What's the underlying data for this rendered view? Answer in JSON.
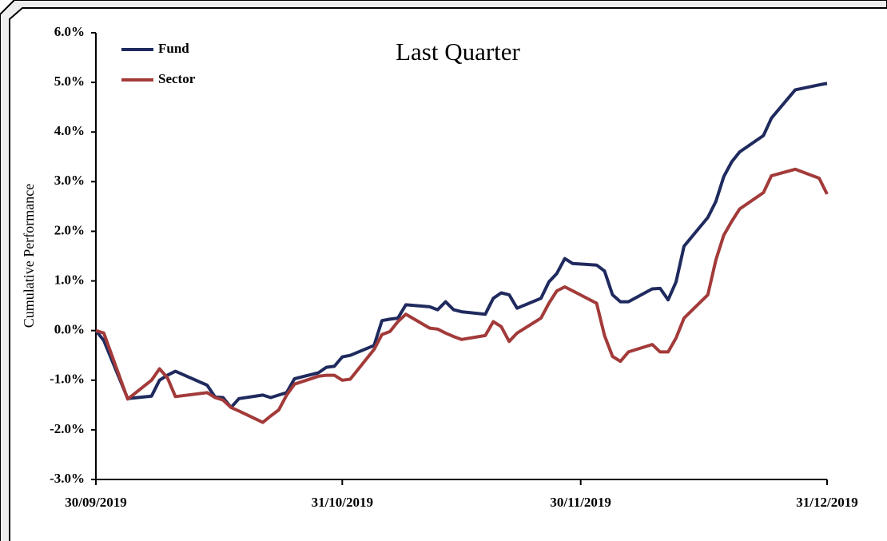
{
  "chart_data": {
    "type": "line",
    "title": "Last Quarter",
    "y_label": "Cumulative Performance",
    "x": [
      "2019-09-30",
      "2019-10-01",
      "2019-10-04",
      "2019-10-07",
      "2019-10-08",
      "2019-10-09",
      "2019-10-10",
      "2019-10-14",
      "2019-10-15",
      "2019-10-16",
      "2019-10-17",
      "2019-10-18",
      "2019-10-21",
      "2019-10-22",
      "2019-10-23",
      "2019-10-24",
      "2019-10-25",
      "2019-10-28",
      "2019-10-29",
      "2019-10-30",
      "2019-10-31",
      "2019-11-01",
      "2019-11-04",
      "2019-11-05",
      "2019-11-06",
      "2019-11-07",
      "2019-11-08",
      "2019-11-11",
      "2019-11-12",
      "2019-11-13",
      "2019-11-14",
      "2019-11-15",
      "2019-11-18",
      "2019-11-19",
      "2019-11-20",
      "2019-11-21",
      "2019-11-22",
      "2019-11-25",
      "2019-11-26",
      "2019-11-27",
      "2019-11-28",
      "2019-11-29",
      "2019-12-02",
      "2019-12-03",
      "2019-12-04",
      "2019-12-05",
      "2019-12-06",
      "2019-12-09",
      "2019-12-10",
      "2019-12-11",
      "2019-12-12",
      "2019-12-13",
      "2019-12-16",
      "2019-12-17",
      "2019-12-18",
      "2019-12-19",
      "2019-12-20",
      "2019-12-23",
      "2019-12-24",
      "2019-12-27",
      "2019-12-30",
      "2019-12-31"
    ],
    "series": [
      {
        "name": "Fund",
        "color": "#1f2a5e",
        "values": [
          0,
          -0.2,
          -1.37,
          -1.32,
          -1.0,
          -0.9,
          -0.82,
          -1.1,
          -1.34,
          -1.35,
          -1.55,
          -1.37,
          -1.3,
          -1.35,
          -1.3,
          -1.25,
          -0.97,
          -0.85,
          -0.74,
          -0.72,
          -0.53,
          -0.5,
          -0.3,
          0.2,
          0.23,
          0.25,
          0.52,
          0.48,
          0.42,
          0.58,
          0.42,
          0.38,
          0.33,
          0.65,
          0.76,
          0.72,
          0.45,
          0.65,
          0.98,
          1.15,
          1.45,
          1.35,
          1.32,
          1.2,
          0.72,
          0.58,
          0.58,
          0.84,
          0.85,
          0.62,
          0.98,
          1.7,
          2.28,
          2.6,
          3.1,
          3.4,
          3.6,
          3.93,
          4.28,
          4.85,
          4.95,
          4.98
        ]
      },
      {
        "name": "Sector",
        "color": "#a33a3a",
        "values": [
          0,
          -0.05,
          -1.38,
          -1.0,
          -0.77,
          -0.95,
          -1.33,
          -1.25,
          -1.35,
          -1.4,
          -1.55,
          -1.62,
          -1.85,
          -1.72,
          -1.6,
          -1.3,
          -1.08,
          -0.92,
          -0.9,
          -0.9,
          -1.0,
          -0.98,
          -0.38,
          -0.08,
          -0.02,
          0.18,
          0.33,
          0.05,
          0.03,
          -0.05,
          -0.12,
          -0.18,
          -0.1,
          0.18,
          0.08,
          -0.22,
          -0.05,
          0.25,
          0.55,
          0.8,
          0.88,
          0.8,
          0.55,
          -0.1,
          -0.52,
          -0.62,
          -0.43,
          -0.28,
          -0.43,
          -0.43,
          -0.15,
          0.25,
          0.72,
          1.42,
          1.92,
          2.2,
          2.45,
          2.78,
          3.12,
          3.25,
          3.07,
          2.75
        ]
      }
    ],
    "xlim": [
      "2019-09-30",
      "2019-12-31"
    ],
    "xticks": [
      {
        "value": "2019-09-30",
        "label": "30/09/2019"
      },
      {
        "value": "2019-10-31",
        "label": "31/10/2019"
      },
      {
        "value": "2019-11-30",
        "label": "30/11/2019"
      },
      {
        "value": "2019-12-31",
        "label": "31/12/2019"
      }
    ],
    "ylim": [
      -3,
      6
    ],
    "yticks": [
      {
        "value": -3,
        "label": "-3.0%"
      },
      {
        "value": -2,
        "label": "-2.0%"
      },
      {
        "value": -1,
        "label": "-1.0%"
      },
      {
        "value": 0,
        "label": "0.0%"
      },
      {
        "value": 1,
        "label": "1.0%"
      },
      {
        "value": 2,
        "label": "2.0%"
      },
      {
        "value": 3,
        "label": "3.0%"
      },
      {
        "value": 4,
        "label": "4.0%"
      },
      {
        "value": 5,
        "label": "5.0%"
      },
      {
        "value": 6,
        "label": "6.0%"
      }
    ],
    "legend": "top-left",
    "grid": false
  }
}
